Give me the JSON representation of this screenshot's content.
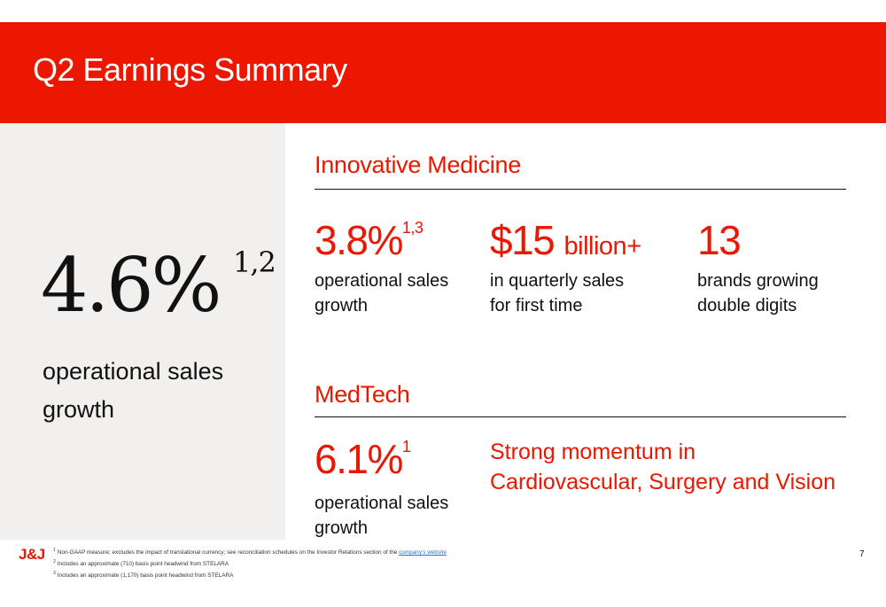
{
  "header": {
    "title": "Q2 Earnings Summary"
  },
  "headline": {
    "value": "4.6%",
    "footnote_refs": "1,2",
    "caption_line1": "operational sales",
    "caption_line2": "growth"
  },
  "innovative_medicine": {
    "title": "Innovative Medicine",
    "stats": [
      {
        "value": "3.8%",
        "footnote_refs": "1,3",
        "caption_line1": "operational sales",
        "caption_line2": "growth"
      },
      {
        "value": "$15",
        "value_suffix": "billion+",
        "caption_line1": "in quarterly sales",
        "caption_line2": "for first time"
      },
      {
        "value": "13",
        "caption_line1": "brands growing",
        "caption_line2": "double digits"
      }
    ]
  },
  "medtech": {
    "title": "MedTech",
    "stat": {
      "value": "6.1%",
      "footnote_refs": "1",
      "caption_line1": "operational sales",
      "caption_line2": "growth"
    },
    "highlight_line1": "Strong momentum in",
    "highlight_line2": "Cardiovascular, Surgery and Vision"
  },
  "footer": {
    "logo": "J&J",
    "footnotes": [
      {
        "num": "1",
        "text": "Non-GAAP measure; excludes the impact of translational currency; see reconciliation schedules on the Investor Relations section of the",
        "link": "company's website"
      },
      {
        "num": "2",
        "text": "Includes an approximate (710) basis point headwind from STELARA"
      },
      {
        "num": "3",
        "text": "Includes an approximate (1,170) basis point headwind from STELARA"
      }
    ],
    "page_number": "7"
  },
  "colors": {
    "brand_red": "#eb1700",
    "panel_gray": "#f1f0ef",
    "text": "#111111"
  }
}
